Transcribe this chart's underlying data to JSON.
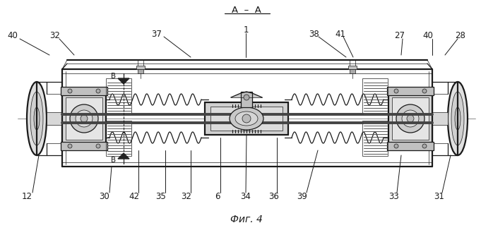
{
  "top_title": "А  –  А",
  "subtitle": "Фиг. 4",
  "bg_color": "#ffffff",
  "fig_width": 6.98,
  "fig_height": 3.33,
  "dpi": 100,
  "line_color": "#1a1a1a",
  "light_gray": "#888888",
  "dark_gray": "#555555",
  "label_B": "B"
}
